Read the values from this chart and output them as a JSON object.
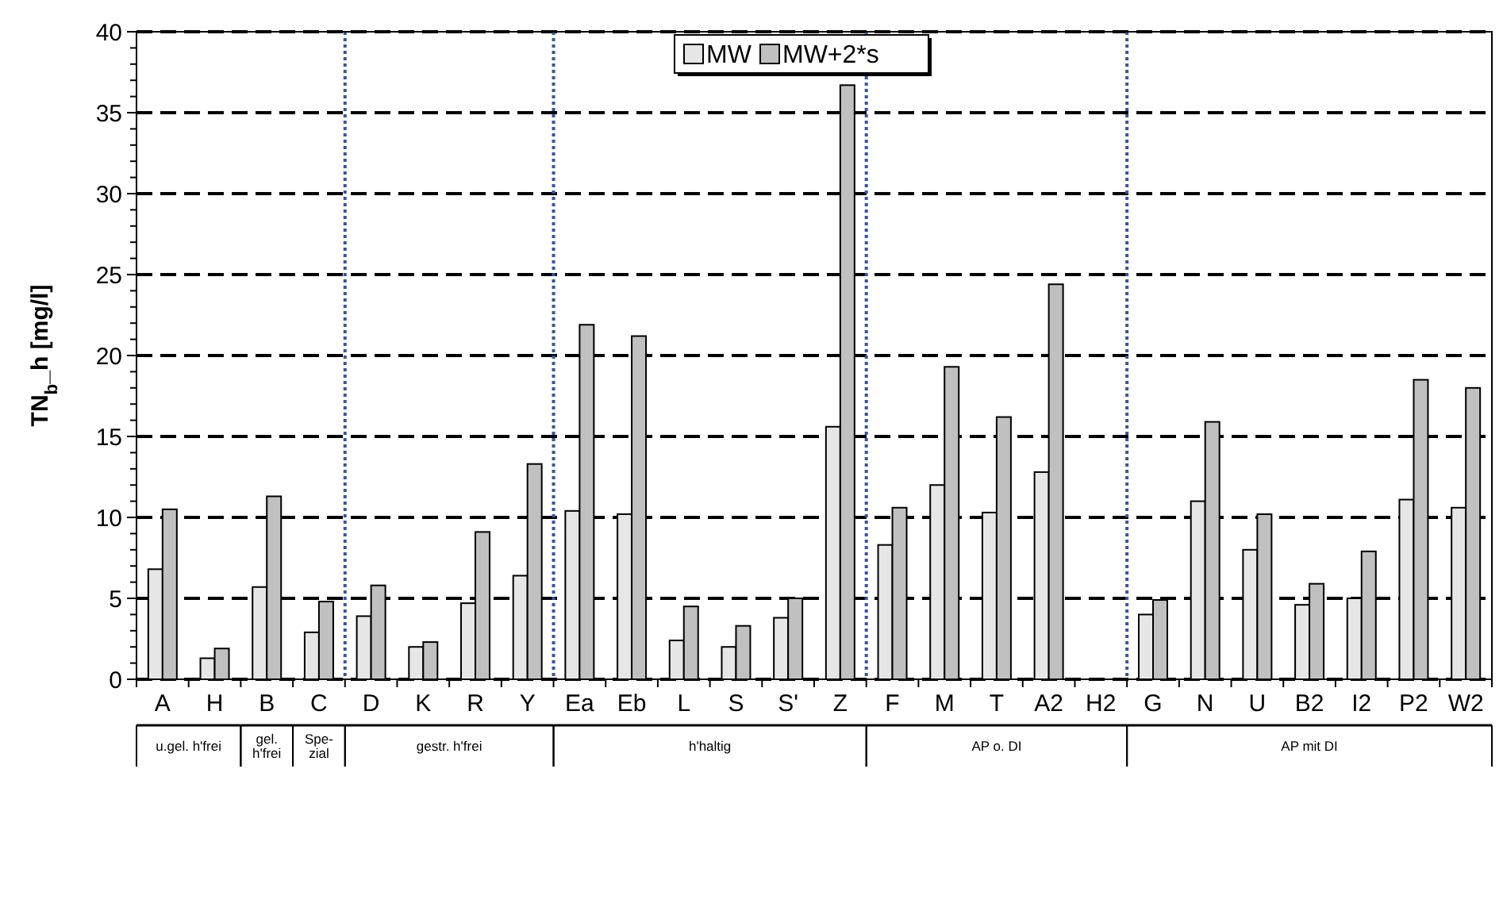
{
  "chart_data": {
    "type": "bar",
    "ylabel": "TN$_{b}$_h [mg/l]",
    "categories": [
      "A",
      "H",
      "B",
      "C",
      "D",
      "K",
      "R",
      "Y",
      "Ea",
      "Eb",
      "L",
      "S",
      "S'",
      "Z",
      "F",
      "M",
      "T",
      "A2",
      "H2",
      "G",
      "N",
      "U",
      "B2",
      "I2",
      "P2",
      "W2"
    ],
    "series": [
      {
        "name": "MW",
        "color": "#e6e6e6",
        "values": [
          6.8,
          1.3,
          5.7,
          2.9,
          3.9,
          2.0,
          4.7,
          6.4,
          10.4,
          10.2,
          2.4,
          2.0,
          3.8,
          15.6,
          8.3,
          12.0,
          10.3,
          12.8,
          null,
          4.0,
          11.0,
          8.0,
          4.6,
          5.0,
          11.1,
          10.6
        ]
      },
      {
        "name": "MW+2*s",
        "color": "#c0c0c0",
        "values": [
          10.5,
          1.9,
          11.3,
          4.8,
          5.8,
          2.3,
          9.1,
          13.3,
          21.9,
          21.2,
          4.5,
          3.3,
          5.0,
          36.7,
          10.6,
          19.3,
          16.2,
          24.4,
          null,
          4.9,
          15.9,
          10.2,
          5.9,
          7.9,
          18.5,
          18.0
        ]
      }
    ],
    "ylim": [
      0,
      40
    ],
    "yticks": [
      0,
      {
        "value": 1,
        "label": null
      },
      {
        "value": 2,
        "label": null
      },
      {
        "value": 3,
        "label": null
      },
      {
        "value": 4,
        "label": null
      },
      5,
      {
        "value": 6,
        "label": null
      },
      {
        "value": 7,
        "label": null
      },
      {
        "value": 8,
        "label": null
      },
      {
        "value": 9,
        "label": null
      },
      10,
      {
        "value": 11,
        "label": null
      },
      {
        "value": 12,
        "label": null
      },
      {
        "value": 13,
        "label": null
      },
      {
        "value": 14,
        "label": null
      },
      15,
      {
        "value": 16,
        "label": null
      },
      {
        "value": 17,
        "label": null
      },
      {
        "value": 18,
        "label": null
      },
      {
        "value": 19,
        "label": null
      },
      20,
      {
        "value": 21,
        "label": null
      },
      {
        "value": 22,
        "label": null
      },
      {
        "value": 23,
        "label": null
      },
      {
        "value": 24,
        "label": null
      },
      25,
      {
        "value": 26,
        "label": null
      },
      {
        "value": 27,
        "label": null
      },
      {
        "value": 28,
        "label": null
      },
      {
        "value": 29,
        "label": null
      },
      30,
      {
        "value": 31,
        "label": null
      },
      {
        "value": 32,
        "label": null
      },
      {
        "value": 33,
        "label": null
      },
      {
        "value": 34,
        "label": null
      },
      35,
      {
        "value": 36,
        "label": null
      },
      {
        "value": 37,
        "label": null
      },
      {
        "value": 38,
        "label": null
      },
      {
        "value": 39,
        "label": null
      },
      40
    ],
    "grid": "y",
    "legend": "top",
    "annotations": [
      "u.gel. h'frei",
      "gel. h'frei",
      "Spe-zial",
      "gestr. h'frei",
      "h'haltig",
      "AP o. DI",
      "AP mit DI"
    ]
  }
}
